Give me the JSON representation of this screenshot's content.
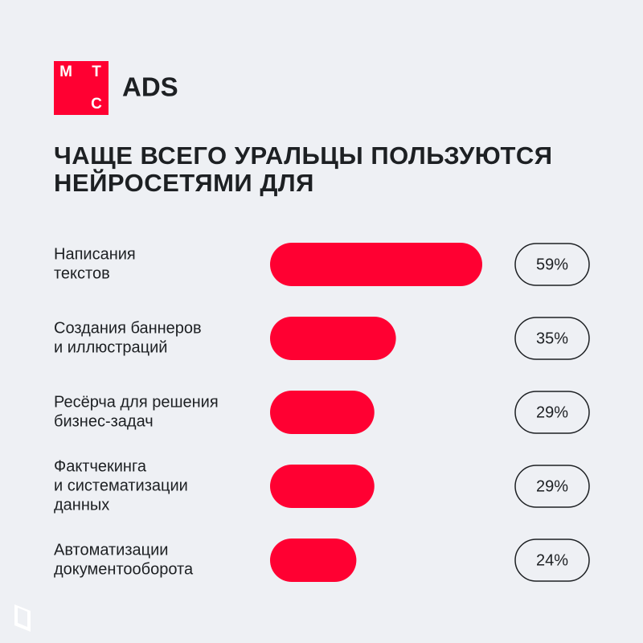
{
  "logo": {
    "letters": [
      "М",
      "Т",
      "С"
    ],
    "brand": "ADS"
  },
  "chart_data": {
    "type": "bar",
    "orientation": "horizontal",
    "title": [
      "ЧАЩЕ ВСЕГО УРАЛЬЦЫ ПОЛЬЗУЮТСЯ",
      "НЕЙРОСЕТЯМИ ДЛЯ"
    ],
    "categories": [
      [
        "Написания",
        "текстов"
      ],
      [
        "Создания баннеров",
        "и иллюстраций"
      ],
      [
        "Ресёрча для решения",
        "бизнес-задач"
      ],
      [
        "Фактчекинга",
        "и систематизации",
        "данных"
      ],
      [
        "Автоматизации",
        "документооборота"
      ]
    ],
    "values": [
      59,
      35,
      29,
      29,
      24
    ],
    "value_labels": [
      "59%",
      "35%",
      "29%",
      "29%",
      "24%"
    ],
    "color": "#ff0032"
  }
}
